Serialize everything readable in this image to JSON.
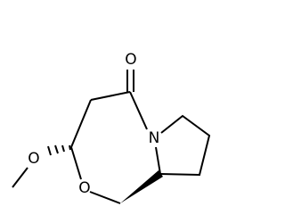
{
  "nodes": [
    {
      "label": "O"
    },
    {
      "label": "N"
    },
    {
      "label": "O"
    },
    {
      "label": "O"
    }
  ]
}
